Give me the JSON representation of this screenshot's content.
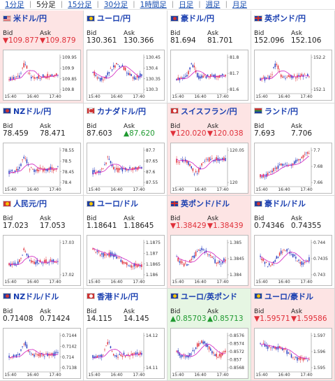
{
  "tabs": [
    {
      "label": "1分足",
      "active": false
    },
    {
      "label": "5分足",
      "active": true
    },
    {
      "label": "15分足",
      "active": false
    },
    {
      "label": "30分足",
      "active": false
    },
    {
      "label": "1時間足",
      "active": false
    },
    {
      "label": "日足",
      "active": false
    },
    {
      "label": "週足",
      "active": false
    },
    {
      "label": "月足",
      "active": false
    }
  ],
  "labels": {
    "bid": "Bid",
    "ask": "Ask"
  },
  "colors": {
    "down": "#e0303a",
    "up": "#1f9a30",
    "candle_up": "#e0303a",
    "candle_down": "#2a3fc0",
    "ma": "#d020c0",
    "title": "#1a3fb0"
  },
  "pairs": [
    {
      "title": "米ドル/円",
      "flag": "us",
      "highlight": "down",
      "bid": "▼109.877",
      "ask": "▼109.879",
      "bid_dir": "down",
      "ask_dir": "down",
      "x_ticks": [
        "15:40",
        "16:40",
        "17:40"
      ],
      "y_ticks": [
        "109.95",
        "109.9",
        "109.85",
        "109.8"
      ],
      "trend": "spike"
    },
    {
      "title": "ユーロ/円",
      "flag": "eu",
      "highlight": "none",
      "bid": "130.361",
      "ask": "130.366",
      "bid_dir": "flat",
      "ask_dir": "flat",
      "x_ticks": [
        "15:40",
        "16:40",
        "17:40"
      ],
      "y_ticks": [
        "130.45",
        "130.4",
        "130.35",
        "130.3"
      ],
      "trend": "wave"
    },
    {
      "title": "豪ドル/円",
      "flag": "au",
      "highlight": "none",
      "bid": "81.694",
      "ask": "81.701",
      "bid_dir": "flat",
      "ask_dir": "flat",
      "x_ticks": [
        "15:40",
        "16:40",
        "17:40"
      ],
      "y_ticks": [
        "81.8",
        "81.7",
        "81.6"
      ],
      "trend": "spike"
    },
    {
      "title": "英ポンド/円",
      "flag": "gb",
      "highlight": "none",
      "bid": "152.096",
      "ask": "152.106",
      "bid_dir": "flat",
      "ask_dir": "flat",
      "x_ticks": [
        "15:40",
        "16:40",
        "17:40"
      ],
      "y_ticks": [
        "152.2",
        "152.1"
      ],
      "trend": "spike"
    },
    {
      "title": "NZドル/円",
      "flag": "nz",
      "highlight": "none",
      "bid": "78.459",
      "ask": "78.471",
      "bid_dir": "flat",
      "ask_dir": "flat",
      "x_ticks": [
        "15:40",
        "16:40",
        "17:40"
      ],
      "y_ticks": [
        "78.55",
        "78.5",
        "78.45",
        "78.4"
      ],
      "trend": "spike"
    },
    {
      "title": "カナダドル/円",
      "flag": "ca",
      "highlight": "none",
      "bid": "87.603",
      "ask": "▲87.620",
      "bid_dir": "flat",
      "ask_dir": "up",
      "x_ticks": [
        "15:40",
        "16:40",
        "17:40"
      ],
      "y_ticks": [
        "87.7",
        "87.65",
        "87.6",
        "87.55"
      ],
      "trend": "spike"
    },
    {
      "title": "スイスフラン/円",
      "flag": "ch",
      "highlight": "down",
      "bid": "▼120.020",
      "ask": "▼120.038",
      "bid_dir": "down",
      "ask_dir": "down",
      "x_ticks": [
        "15:40",
        "16:40",
        "17:40"
      ],
      "y_ticks": [
        "120.05",
        "120"
      ],
      "trend": "dip"
    },
    {
      "title": "ランド/円",
      "flag": "za",
      "highlight": "none",
      "bid": "7.693",
      "ask": "7.706",
      "bid_dir": "flat",
      "ask_dir": "flat",
      "x_ticks": [
        "15:40",
        "16:40",
        "17:40"
      ],
      "y_ticks": [
        "7.7",
        "7.68",
        "7.66"
      ],
      "trend": "rise"
    },
    {
      "title": "人民元/円",
      "flag": "cn",
      "highlight": "none",
      "bid": "17.023",
      "ask": "17.053",
      "bid_dir": "flat",
      "ask_dir": "flat",
      "x_ticks": [
        "15:40",
        "16:40",
        "17:40"
      ],
      "y_ticks": [
        "17.03",
        "17.02"
      ],
      "trend": "spike"
    },
    {
      "title": "ユーロ/ドル",
      "flag": "eu",
      "highlight": "none",
      "bid": "1.18641",
      "ask": "1.18645",
      "bid_dir": "flat",
      "ask_dir": "flat",
      "x_ticks": [
        "15:40",
        "16:40",
        "17:40"
      ],
      "y_ticks": [
        "1.1875",
        "1.187",
        "1.1865",
        "1.186"
      ],
      "trend": "fall"
    },
    {
      "title": "英ポンド/ドル",
      "flag": "gb",
      "highlight": "down",
      "bid": "▼1.38429",
      "ask": "▼1.38439",
      "bid_dir": "down",
      "ask_dir": "down",
      "x_ticks": [
        "15:40",
        "16:40",
        "17:40"
      ],
      "y_ticks": [
        "1.385",
        "1.3845",
        "1.384"
      ],
      "trend": "wave"
    },
    {
      "title": "豪ドル/ドル",
      "flag": "au",
      "highlight": "none",
      "bid": "0.74346",
      "ask": "0.74355",
      "bid_dir": "flat",
      "ask_dir": "flat",
      "x_ticks": [
        "15:40",
        "16:40",
        "17:40"
      ],
      "y_ticks": [
        "0.744",
        "0.7435",
        "0.743"
      ],
      "trend": "wave"
    },
    {
      "title": "NZドル/ドル",
      "flag": "nz",
      "highlight": "none",
      "bid": "0.71408",
      "ask": "0.71424",
      "bid_dir": "flat",
      "ask_dir": "flat",
      "x_ticks": [
        "15:40",
        "16:40",
        "17:40"
      ],
      "y_ticks": [
        "0.7144",
        "0.7142",
        "0.714",
        "0.7138"
      ],
      "trend": "spike"
    },
    {
      "title": "香港ドル/円",
      "flag": "hk",
      "highlight": "none",
      "bid": "14.115",
      "ask": "14.145",
      "bid_dir": "flat",
      "ask_dir": "flat",
      "x_ticks": [
        "15:40",
        "16:40",
        "17:40"
      ],
      "y_ticks": [
        "14.12",
        "14.11"
      ],
      "trend": "spike"
    },
    {
      "title": "ユーロ/英ポンド",
      "flag": "eu",
      "highlight": "up",
      "bid": "▲0.85703",
      "ask": "▲0.85713",
      "bid_dir": "up",
      "ask_dir": "up",
      "x_ticks": [
        "15:40",
        "16:40",
        "17:40"
      ],
      "y_ticks": [
        "0.8576",
        "0.8574",
        "0.8572",
        "0.857",
        "0.8568"
      ],
      "trend": "wave"
    },
    {
      "title": "ユーロ/豪ドル",
      "flag": "eu",
      "highlight": "down",
      "bid": "▼1.59571",
      "ask": "▼1.59586",
      "bid_dir": "down",
      "ask_dir": "down",
      "x_ticks": [
        "15:40",
        "16:40",
        "17:40"
      ],
      "y_ticks": [
        "1.597",
        "1.596",
        "1.595"
      ],
      "trend": "fall"
    }
  ]
}
